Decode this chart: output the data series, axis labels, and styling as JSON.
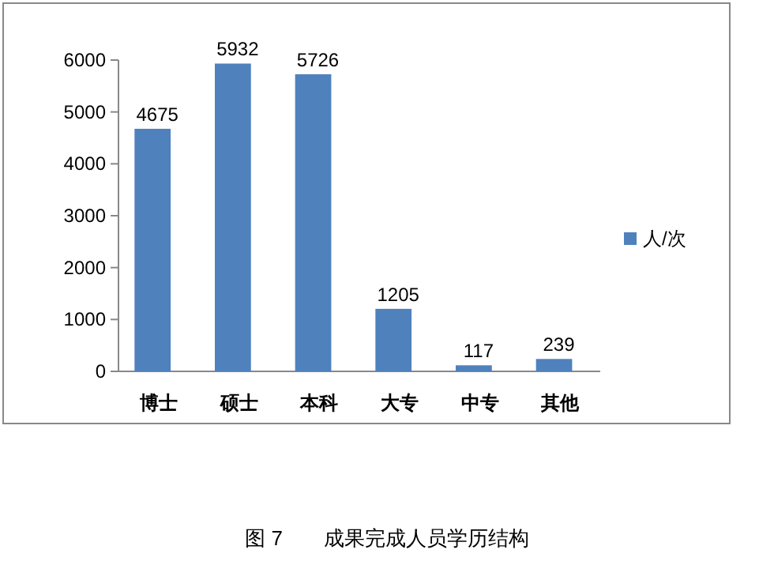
{
  "chart_data": {
    "type": "bar",
    "categories": [
      "博士",
      "硕士",
      "本科",
      "大专",
      "中专",
      "其他"
    ],
    "series": [
      {
        "name": "人/次",
        "color": "#4f81bd",
        "values": [
          4675,
          5932,
          5726,
          1205,
          117,
          239
        ]
      }
    ],
    "ylim": [
      0,
      6000
    ],
    "yticks": [
      0,
      1000,
      2000,
      3000,
      4000,
      5000,
      6000
    ],
    "data_labels": true,
    "legend": "right",
    "grid": false,
    "annotations": [
      "图 7　　成果完成人员学历结构"
    ]
  }
}
